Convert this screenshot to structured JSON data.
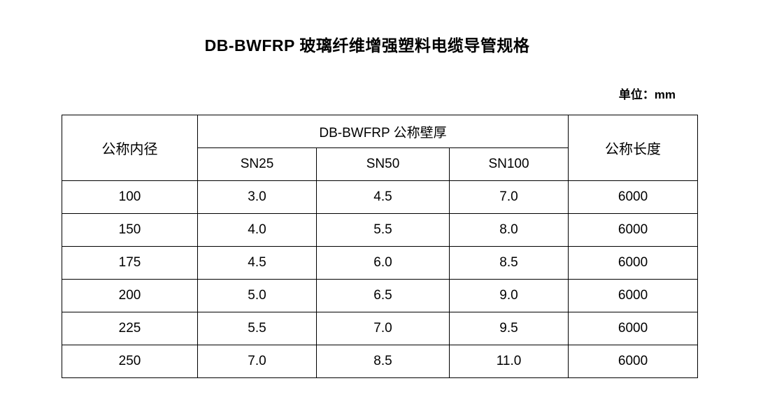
{
  "title": "DB-BWFRP 玻璃纤维增强塑料电缆导管规格",
  "unit": "单位：mm",
  "table": {
    "header": {
      "nominal_diameter": "公称内径",
      "wall_group": "DB-BWFRP 公称壁厚",
      "sn_classes": [
        "SN25",
        "SN50",
        "SN100"
      ],
      "nominal_length": "公称长度"
    },
    "rows": [
      [
        "100",
        "3.0",
        "4.5",
        "7.0",
        "6000"
      ],
      [
        "150",
        "4.0",
        "5.5",
        "8.0",
        "6000"
      ],
      [
        "175",
        "4.5",
        "6.0",
        "8.5",
        "6000"
      ],
      [
        "200",
        "5.0",
        "6.5",
        "9.0",
        "6000"
      ],
      [
        "225",
        "5.5",
        "7.0",
        "9.5",
        "6000"
      ],
      [
        "250",
        "7.0",
        "8.5",
        "11.0",
        "6000"
      ]
    ]
  }
}
